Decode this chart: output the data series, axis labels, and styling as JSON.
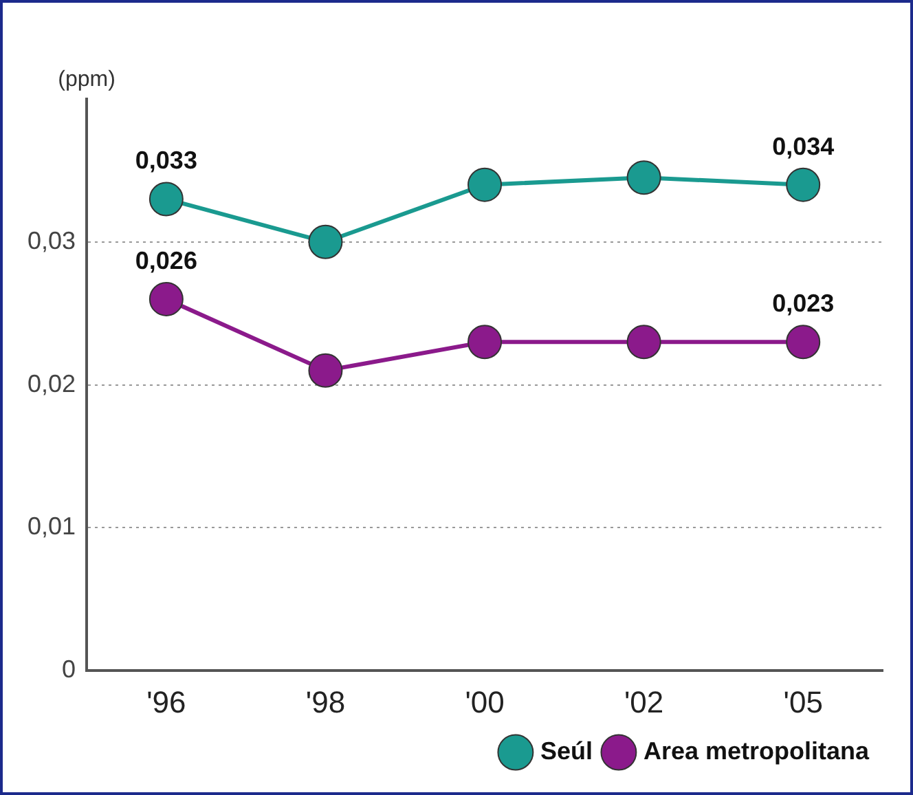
{
  "chart_data": {
    "type": "line",
    "ylabel": "(ppm)",
    "categories": [
      "'96",
      "'98",
      "'00",
      "'02",
      "'05"
    ],
    "series": [
      {
        "name": "Seúl",
        "color": "#1a9a90",
        "values": [
          0.033,
          0.03,
          0.034,
          0.0345,
          0.034
        ],
        "value_labels": [
          "0,033",
          null,
          null,
          null,
          "0,034"
        ]
      },
      {
        "name": "Area metropolitana",
        "color": "#8b1a8b",
        "values": [
          0.026,
          0.021,
          0.023,
          0.023,
          0.023
        ],
        "value_labels": [
          "0,026",
          null,
          null,
          null,
          "0,023"
        ]
      }
    ],
    "ylim": [
      0,
      0.04
    ],
    "yticks": [
      {
        "value": 0,
        "label": "0"
      },
      {
        "value": 0.01,
        "label": "0,01"
      },
      {
        "value": 0.02,
        "label": "0,02"
      },
      {
        "value": 0.03,
        "label": "0,03"
      }
    ],
    "grid": "y",
    "legend": "bottom right",
    "marker": "circle",
    "line_style": "solid"
  }
}
